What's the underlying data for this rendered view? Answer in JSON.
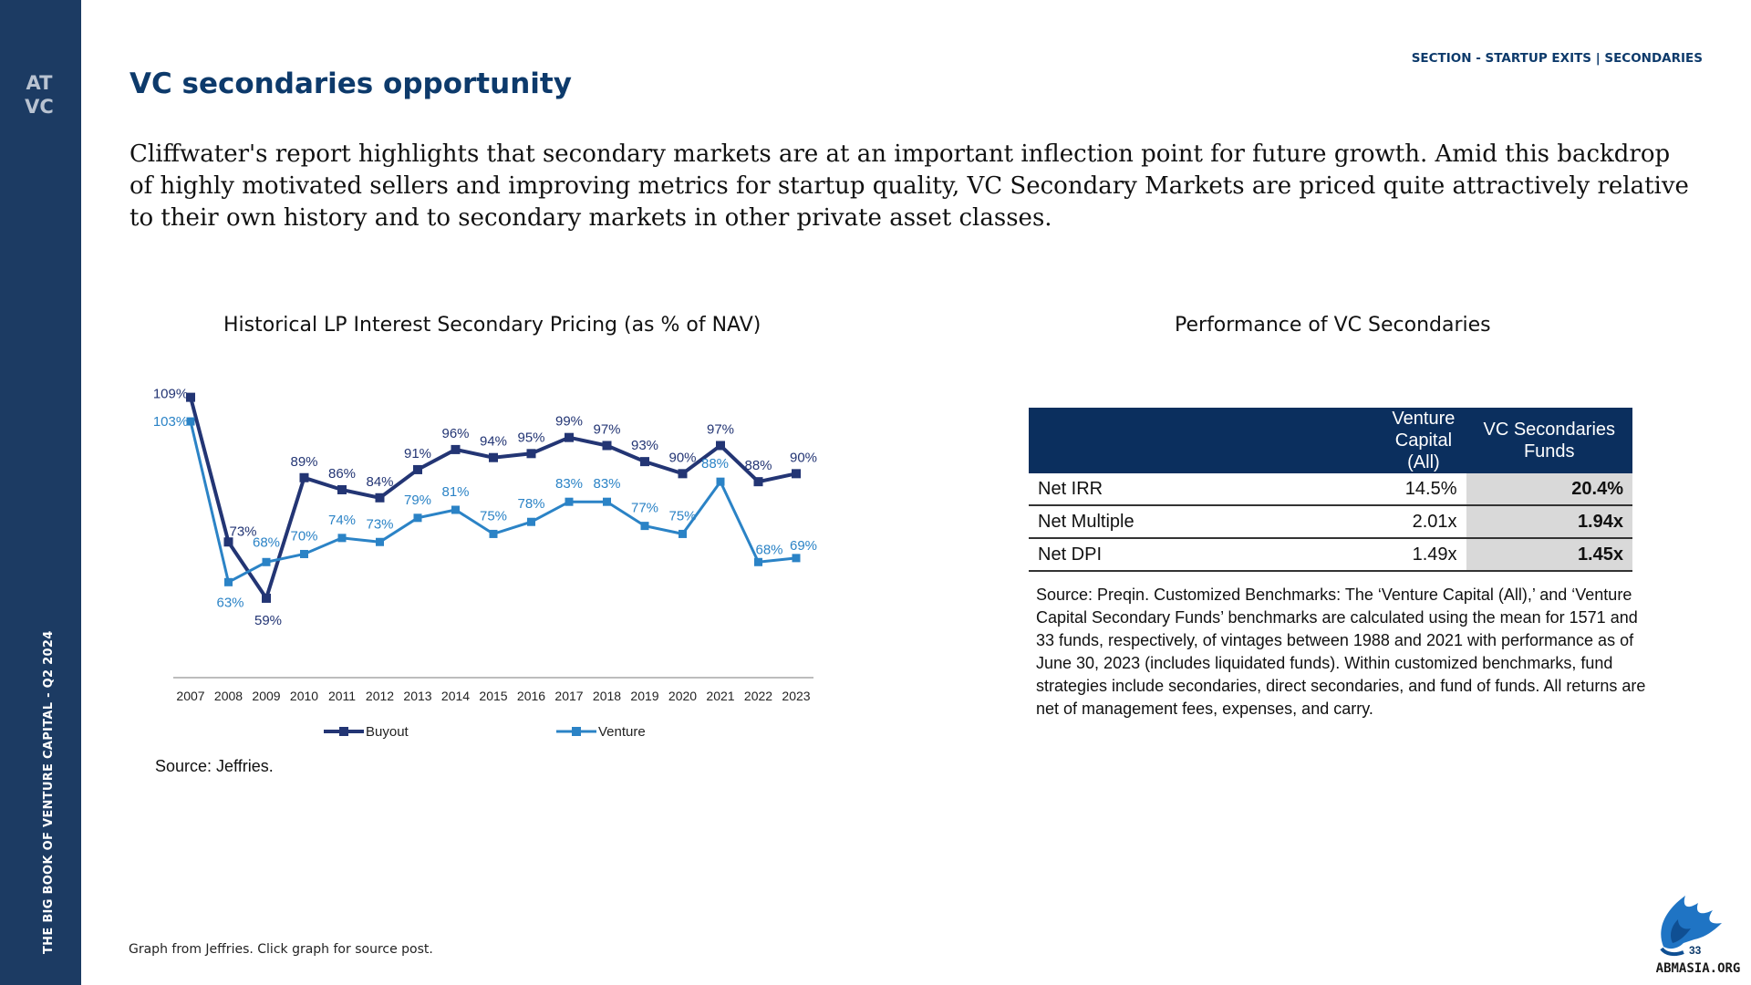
{
  "sidebar": {
    "logo_letters": "ATVC",
    "vertical_text": "THE BIG BOOK OF VENTURE CAPITAL - Q2 2024"
  },
  "header": {
    "section": "SECTION - STARTUP EXITS | SECONDARIES",
    "title": "VC secondaries opportunity"
  },
  "intro": "Cliffwater's report highlights that secondary markets are at an important inflection point for future growth. Amid this backdrop of highly motivated sellers and improving metrics for startup quality, VC Secondary Markets are priced quite attractively relative to their own history and to secondary markets in other private asset classes.",
  "left_chart": {
    "heading": "Historical LP Interest Secondary Pricing (as % of NAV)",
    "source": "Source: Jeffries."
  },
  "right_panel": {
    "heading": "Performance of VC Secondaries",
    "table": {
      "col_vc_line1": "Venture",
      "col_vc_line2": "Capital (All)",
      "col_sec_line1": "VC Secondaries",
      "col_sec_line2": "Funds",
      "rows": [
        {
          "metric": "Net IRR",
          "vc": "14.5%",
          "sec": "20.4%"
        },
        {
          "metric": "Net Multiple",
          "vc": "2.01x",
          "sec": "1.94x"
        },
        {
          "metric": "Net DPI",
          "vc": "1.49x",
          "sec": "1.45x"
        }
      ]
    },
    "source": "Source: Preqin. Customized Benchmarks: The ‘Venture Capital (All),’ and ‘Venture Capital Secondary Funds’ benchmarks are calculated using the mean for 1571 and 33 funds, respectively, of vintages between 1988 and 2021 with performance as of June 30, 2023 (includes liquidated funds). Within customized benchmarks, fund strategies include secondaries, direct secondaries, and fund of funds. All returns are net of management fees, expenses, and carry."
  },
  "footer": {
    "note": "Graph from Jeffries. Click graph for source post.",
    "page_number": "33",
    "watermark": "ABMASIA.ORG"
  },
  "colors": {
    "sidebar": "#1c3b63",
    "heading": "#0d3a6b",
    "buyout": "#233574",
    "venture": "#2b83c6",
    "table_header": "#0b2f5e"
  },
  "chart_data": {
    "type": "line",
    "title": "Historical LP Interest Secondary Pricing (as % of NAV)",
    "x": [
      "2007",
      "2008",
      "2009",
      "2010",
      "2011",
      "2012",
      "2013",
      "2014",
      "2015",
      "2016",
      "2017",
      "2018",
      "2019",
      "2020",
      "2021",
      "2022",
      "2023"
    ],
    "series": [
      {
        "name": "Buyout",
        "color": "#233574",
        "labels": [
          "109%",
          "73%",
          "59%",
          "89%",
          "86%",
          "84%",
          "91%",
          "96%",
          "94%",
          "95%",
          "99%",
          "97%",
          "93%",
          "90%",
          "97%",
          "88%",
          "90%"
        ],
        "values": [
          109,
          73,
          59,
          89,
          86,
          84,
          91,
          96,
          94,
          95,
          99,
          97,
          93,
          90,
          97,
          88,
          90
        ]
      },
      {
        "name": "Venture",
        "color": "#2b83c6",
        "labels": [
          "103%",
          "63%",
          "68%",
          "70%",
          "74%",
          "73%",
          "79%",
          "81%",
          "75%",
          "78%",
          "83%",
          "83%",
          "77%",
          "75%",
          "88%",
          "68%",
          "69%"
        ],
        "values": [
          103,
          63,
          68,
          70,
          74,
          73,
          79,
          81,
          75,
          78,
          83,
          83,
          77,
          75,
          88,
          68,
          69
        ]
      }
    ],
    "ylim": [
      49,
      113
    ],
    "grid": false,
    "legend": "bottom"
  }
}
